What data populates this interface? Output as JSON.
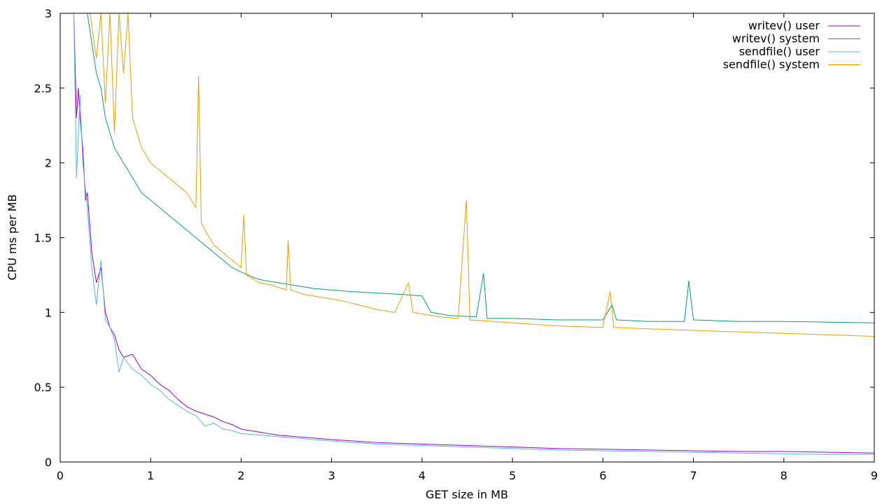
{
  "chart_data": {
    "type": "line",
    "title": "",
    "xlabel": "GET size in MB",
    "ylabel": "CPU ms per MB",
    "xlim": [
      0,
      9
    ],
    "ylim": [
      0,
      3
    ],
    "x_ticks": [
      0,
      1,
      2,
      3,
      4,
      5,
      6,
      7,
      8,
      9
    ],
    "y_ticks": [
      0,
      0.5,
      1,
      1.5,
      2,
      2.5,
      3
    ],
    "grid": false,
    "legend_position": "top-right",
    "series": [
      {
        "name": "writev() user",
        "color": "#9400d3",
        "points": [
          [
            0.15,
            3.0
          ],
          [
            0.18,
            2.3
          ],
          [
            0.2,
            2.5
          ],
          [
            0.22,
            2.3
          ],
          [
            0.25,
            2.1
          ],
          [
            0.28,
            1.75
          ],
          [
            0.3,
            1.8
          ],
          [
            0.35,
            1.4
          ],
          [
            0.4,
            1.2
          ],
          [
            0.45,
            1.3
          ],
          [
            0.5,
            1.0
          ],
          [
            0.55,
            0.9
          ],
          [
            0.6,
            0.85
          ],
          [
            0.65,
            0.75
          ],
          [
            0.7,
            0.7
          ],
          [
            0.8,
            0.72
          ],
          [
            0.9,
            0.62
          ],
          [
            1.0,
            0.58
          ],
          [
            1.1,
            0.52
          ],
          [
            1.2,
            0.48
          ],
          [
            1.3,
            0.42
          ],
          [
            1.4,
            0.37
          ],
          [
            1.5,
            0.34
          ],
          [
            1.6,
            0.32
          ],
          [
            1.7,
            0.3
          ],
          [
            1.8,
            0.27
          ],
          [
            1.9,
            0.25
          ],
          [
            2.0,
            0.22
          ],
          [
            2.2,
            0.2
          ],
          [
            2.4,
            0.18
          ],
          [
            2.6,
            0.17
          ],
          [
            2.8,
            0.16
          ],
          [
            3.0,
            0.15
          ],
          [
            3.5,
            0.13
          ],
          [
            4.0,
            0.12
          ],
          [
            4.5,
            0.11
          ],
          [
            5.0,
            0.1
          ],
          [
            5.5,
            0.09
          ],
          [
            6.0,
            0.085
          ],
          [
            6.5,
            0.08
          ],
          [
            7.0,
            0.075
          ],
          [
            7.5,
            0.07
          ],
          [
            8.0,
            0.07
          ],
          [
            8.5,
            0.065
          ],
          [
            9.0,
            0.06
          ]
        ]
      },
      {
        "name": "writev() system",
        "color": "#009e73",
        "points": [
          [
            0.3,
            3.0
          ],
          [
            0.35,
            2.8
          ],
          [
            0.4,
            2.6
          ],
          [
            0.45,
            2.5
          ],
          [
            0.5,
            2.3
          ],
          [
            0.55,
            2.2
          ],
          [
            0.6,
            2.1
          ],
          [
            0.7,
            2.0
          ],
          [
            0.8,
            1.9
          ],
          [
            0.9,
            1.8
          ],
          [
            1.0,
            1.75
          ],
          [
            1.1,
            1.7
          ],
          [
            1.2,
            1.65
          ],
          [
            1.3,
            1.6
          ],
          [
            1.4,
            1.55
          ],
          [
            1.5,
            1.5
          ],
          [
            1.6,
            1.45
          ],
          [
            1.7,
            1.4
          ],
          [
            1.8,
            1.35
          ],
          [
            1.9,
            1.3
          ],
          [
            2.0,
            1.27
          ],
          [
            2.2,
            1.22
          ],
          [
            2.4,
            1.2
          ],
          [
            2.6,
            1.18
          ],
          [
            2.8,
            1.16
          ],
          [
            3.0,
            1.15
          ],
          [
            3.2,
            1.14
          ],
          [
            3.5,
            1.13
          ],
          [
            3.8,
            1.12
          ],
          [
            4.0,
            1.11
          ],
          [
            4.1,
            1.0
          ],
          [
            4.3,
            0.98
          ],
          [
            4.6,
            0.97
          ],
          [
            4.68,
            1.26
          ],
          [
            4.72,
            0.96
          ],
          [
            5.0,
            0.96
          ],
          [
            5.5,
            0.95
          ],
          [
            6.0,
            0.95
          ],
          [
            6.1,
            1.05
          ],
          [
            6.15,
            0.95
          ],
          [
            6.5,
            0.94
          ],
          [
            6.9,
            0.94
          ],
          [
            6.95,
            1.21
          ],
          [
            7.0,
            0.95
          ],
          [
            7.5,
            0.94
          ],
          [
            8.0,
            0.94
          ],
          [
            8.5,
            0.935
          ],
          [
            9.0,
            0.93
          ]
        ]
      },
      {
        "name": "sendfile() user",
        "color": "#56b4e9",
        "points": [
          [
            0.15,
            3.0
          ],
          [
            0.18,
            1.9
          ],
          [
            0.22,
            2.45
          ],
          [
            0.25,
            2.0
          ],
          [
            0.3,
            1.7
          ],
          [
            0.35,
            1.3
          ],
          [
            0.4,
            1.05
          ],
          [
            0.45,
            1.35
          ],
          [
            0.5,
            0.95
          ],
          [
            0.55,
            0.9
          ],
          [
            0.6,
            0.82
          ],
          [
            0.65,
            0.6
          ],
          [
            0.7,
            0.7
          ],
          [
            0.8,
            0.62
          ],
          [
            0.9,
            0.58
          ],
          [
            1.0,
            0.52
          ],
          [
            1.1,
            0.48
          ],
          [
            1.2,
            0.42
          ],
          [
            1.3,
            0.38
          ],
          [
            1.4,
            0.34
          ],
          [
            1.5,
            0.31
          ],
          [
            1.6,
            0.24
          ],
          [
            1.7,
            0.26
          ],
          [
            1.8,
            0.22
          ],
          [
            1.9,
            0.21
          ],
          [
            2.0,
            0.19
          ],
          [
            2.2,
            0.18
          ],
          [
            2.4,
            0.17
          ],
          [
            2.6,
            0.16
          ],
          [
            2.8,
            0.15
          ],
          [
            3.0,
            0.14
          ],
          [
            3.5,
            0.12
          ],
          [
            4.0,
            0.11
          ],
          [
            4.5,
            0.1
          ],
          [
            5.0,
            0.09
          ],
          [
            5.5,
            0.08
          ],
          [
            6.0,
            0.075
          ],
          [
            6.5,
            0.07
          ],
          [
            7.0,
            0.065
          ],
          [
            7.5,
            0.06
          ],
          [
            8.0,
            0.055
          ],
          [
            8.5,
            0.05
          ],
          [
            9.0,
            0.05
          ]
        ]
      },
      {
        "name": "sendfile() system",
        "color": "#e69f00",
        "points": [
          [
            0.33,
            3.0
          ],
          [
            0.4,
            2.7
          ],
          [
            0.45,
            3.0
          ],
          [
            0.5,
            2.4
          ],
          [
            0.55,
            3.0
          ],
          [
            0.6,
            2.2
          ],
          [
            0.65,
            3.0
          ],
          [
            0.7,
            2.6
          ],
          [
            0.75,
            3.0
          ],
          [
            0.8,
            2.3
          ],
          [
            0.85,
            2.2
          ],
          [
            0.9,
            2.1
          ],
          [
            1.0,
            2.0
          ],
          [
            1.1,
            1.95
          ],
          [
            1.2,
            1.9
          ],
          [
            1.3,
            1.85
          ],
          [
            1.4,
            1.8
          ],
          [
            1.5,
            1.7
          ],
          [
            1.53,
            2.58
          ],
          [
            1.56,
            1.6
          ],
          [
            1.6,
            1.55
          ],
          [
            1.7,
            1.45
          ],
          [
            1.8,
            1.4
          ],
          [
            1.9,
            1.35
          ],
          [
            2.0,
            1.3
          ],
          [
            2.03,
            1.65
          ],
          [
            2.06,
            1.25
          ],
          [
            2.2,
            1.2
          ],
          [
            2.35,
            1.18
          ],
          [
            2.5,
            1.15
          ],
          [
            2.52,
            1.48
          ],
          [
            2.55,
            1.15
          ],
          [
            2.7,
            1.12
          ],
          [
            2.9,
            1.1
          ],
          [
            3.1,
            1.08
          ],
          [
            3.3,
            1.05
          ],
          [
            3.5,
            1.02
          ],
          [
            3.7,
            1.0
          ],
          [
            3.85,
            1.2
          ],
          [
            3.9,
            1.0
          ],
          [
            4.0,
            0.99
          ],
          [
            4.2,
            0.97
          ],
          [
            4.4,
            0.96
          ],
          [
            4.49,
            1.75
          ],
          [
            4.53,
            0.95
          ],
          [
            4.8,
            0.94
          ],
          [
            5.0,
            0.93
          ],
          [
            5.5,
            0.91
          ],
          [
            6.0,
            0.9
          ],
          [
            6.08,
            1.14
          ],
          [
            6.12,
            0.9
          ],
          [
            6.5,
            0.89
          ],
          [
            7.0,
            0.88
          ],
          [
            7.5,
            0.87
          ],
          [
            8.0,
            0.86
          ],
          [
            8.5,
            0.85
          ],
          [
            9.0,
            0.84
          ]
        ]
      }
    ]
  }
}
